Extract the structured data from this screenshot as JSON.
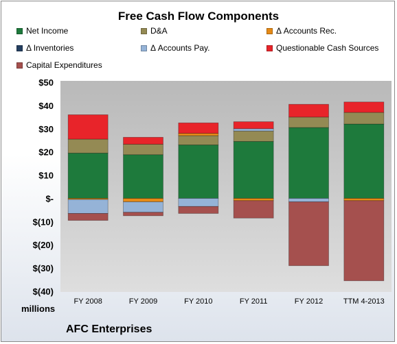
{
  "chart_data": {
    "type": "bar",
    "stacked": true,
    "title": "Free Cash Flow Components",
    "units_label": "millions",
    "footer": "AFC Enterprises",
    "categories": [
      "FY 2008",
      "FY 2009",
      "FY 2010",
      "FY 2011",
      "FY 2012",
      "TTM 4-2013"
    ],
    "y_ticks": [
      "$50",
      "$40",
      "$30",
      "$20",
      "$10",
      "$-",
      "$(10)",
      "$(20)",
      "$(30)",
      "$(40)"
    ],
    "ylim": [
      -40,
      50
    ],
    "grid": false,
    "legend_position": "top",
    "series": [
      {
        "name": "Net Income",
        "color": "#1e7a3c",
        "values": [
          19.5,
          18.8,
          23.0,
          24.5,
          30.5,
          32.0
        ]
      },
      {
        "name": "D&A",
        "color": "#948a54",
        "values": [
          6.0,
          4.5,
          4.0,
          4.5,
          4.5,
          5.0
        ]
      },
      {
        "name": "Δ Accounts Rec.",
        "color": "#e58a17",
        "values": [
          -0.5,
          -1.5,
          1.0,
          -1.0,
          0.0,
          -1.0
        ]
      },
      {
        "name": "Δ Inventories",
        "color": "#243f60",
        "values": [
          0.0,
          0.0,
          0.0,
          0.0,
          0.0,
          0.0
        ]
      },
      {
        "name": "Δ Accounts Pay.",
        "color": "#95b3d7",
        "values": [
          -6.0,
          -4.5,
          -3.5,
          1.0,
          -1.5,
          0.0
        ]
      },
      {
        "name": "Questionable Cash Sources",
        "color": "#e8242a",
        "values": [
          10.5,
          3.0,
          4.5,
          3.0,
          5.5,
          4.5
        ]
      },
      {
        "name": "Capital Expenditures",
        "color": "#a5504e",
        "values": [
          -3.0,
          -1.5,
          -3.0,
          -7.5,
          -27.5,
          -34.5
        ]
      }
    ]
  }
}
